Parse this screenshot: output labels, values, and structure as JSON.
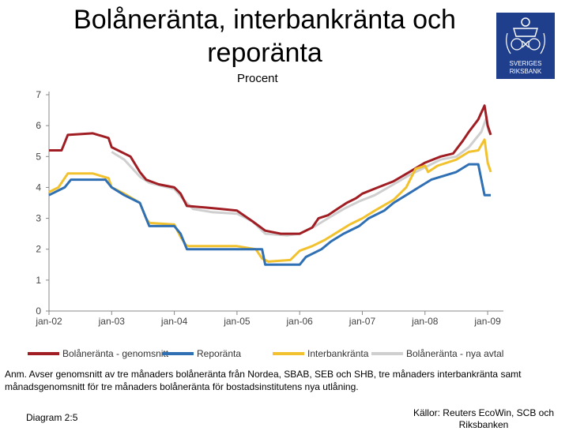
{
  "header": {
    "title": "Bolåneränta, interbankränta och reporänta",
    "unit": "Procent"
  },
  "logo": {
    "line1": "SVERIGES",
    "line2": "RIKSBANK"
  },
  "colors": {
    "bolanerata": "#a01e23",
    "reporanta": "#2f6fb3",
    "interbank": "#f2c12e",
    "nya_avtal": "#cfcfcf",
    "axis": "#888888"
  },
  "chart_data": {
    "type": "line",
    "title": "Bolåneränta, interbankränta och reporänta",
    "ylabel": "Procent",
    "ylim": [
      0,
      7
    ],
    "yticks": [
      "0",
      "1",
      "2",
      "3",
      "4",
      "5",
      "6",
      "7"
    ],
    "xlim": [
      2002.0,
      2009.1
    ],
    "xticks": [
      {
        "label": "jan-02",
        "x": 2002.0
      },
      {
        "label": "jan-03",
        "x": 2003.0
      },
      {
        "label": "jan-04",
        "x": 2004.0
      },
      {
        "label": "jan-05",
        "x": 2005.0
      },
      {
        "label": "jan-06",
        "x": 2006.0
      },
      {
        "label": "jan-07",
        "x": 2007.0
      },
      {
        "label": "jan-08",
        "x": 2008.0
      },
      {
        "label": "jan-09",
        "x": 2009.0
      }
    ],
    "grid": false,
    "legend_position": "bottom",
    "series": [
      {
        "name": "Bolåneränta - genomsnitt",
        "color": "#a01e23",
        "points": [
          [
            2002.0,
            5.2
          ],
          [
            2002.2,
            5.2
          ],
          [
            2002.3,
            5.7
          ],
          [
            2002.7,
            5.75
          ],
          [
            2002.95,
            5.6
          ],
          [
            2003.0,
            5.3
          ],
          [
            2003.3,
            5.0
          ],
          [
            2003.45,
            4.5
          ],
          [
            2003.55,
            4.25
          ],
          [
            2003.75,
            4.1
          ],
          [
            2004.0,
            4.0
          ],
          [
            2004.1,
            3.8
          ],
          [
            2004.2,
            3.4
          ],
          [
            2004.5,
            3.35
          ],
          [
            2004.75,
            3.3
          ],
          [
            2005.0,
            3.25
          ],
          [
            2005.25,
            2.9
          ],
          [
            2005.45,
            2.6
          ],
          [
            2005.7,
            2.5
          ],
          [
            2006.0,
            2.5
          ],
          [
            2006.2,
            2.7
          ],
          [
            2006.3,
            3.0
          ],
          [
            2006.45,
            3.1
          ],
          [
            2006.6,
            3.3
          ],
          [
            2006.75,
            3.5
          ],
          [
            2006.9,
            3.65
          ],
          [
            2007.0,
            3.8
          ],
          [
            2007.25,
            4.0
          ],
          [
            2007.5,
            4.2
          ],
          [
            2007.75,
            4.5
          ],
          [
            2008.0,
            4.8
          ],
          [
            2008.25,
            5.0
          ],
          [
            2008.45,
            5.1
          ],
          [
            2008.6,
            5.5
          ],
          [
            2008.7,
            5.8
          ],
          [
            2008.85,
            6.2
          ],
          [
            2008.95,
            6.65
          ],
          [
            2009.0,
            6.0
          ],
          [
            2009.05,
            5.7
          ]
        ]
      },
      {
        "name": "Reporänta",
        "color": "#2f6fb3",
        "points": [
          [
            2002.0,
            3.75
          ],
          [
            2002.25,
            4.0
          ],
          [
            2002.35,
            4.25
          ],
          [
            2002.9,
            4.25
          ],
          [
            2003.0,
            4.0
          ],
          [
            2003.2,
            3.75
          ],
          [
            2003.45,
            3.5
          ],
          [
            2003.55,
            3.0
          ],
          [
            2003.6,
            2.75
          ],
          [
            2004.0,
            2.75
          ],
          [
            2004.1,
            2.5
          ],
          [
            2004.2,
            2.0
          ],
          [
            2005.0,
            2.0
          ],
          [
            2005.4,
            2.0
          ],
          [
            2005.45,
            1.5
          ],
          [
            2006.0,
            1.5
          ],
          [
            2006.1,
            1.75
          ],
          [
            2006.35,
            2.0
          ],
          [
            2006.5,
            2.25
          ],
          [
            2006.7,
            2.5
          ],
          [
            2006.95,
            2.75
          ],
          [
            2007.1,
            3.0
          ],
          [
            2007.35,
            3.25
          ],
          [
            2007.5,
            3.5
          ],
          [
            2007.7,
            3.75
          ],
          [
            2007.9,
            4.0
          ],
          [
            2008.1,
            4.25
          ],
          [
            2008.5,
            4.5
          ],
          [
            2008.7,
            4.75
          ],
          [
            2008.85,
            4.75
          ],
          [
            2008.9,
            4.25
          ],
          [
            2008.95,
            3.75
          ],
          [
            2009.05,
            3.75
          ]
        ]
      },
      {
        "name": "Interbankränta",
        "color": "#f2c12e",
        "points": [
          [
            2002.0,
            3.85
          ],
          [
            2002.15,
            4.0
          ],
          [
            2002.3,
            4.45
          ],
          [
            2002.7,
            4.45
          ],
          [
            2002.95,
            4.3
          ],
          [
            2003.0,
            4.0
          ],
          [
            2003.2,
            3.8
          ],
          [
            2003.45,
            3.5
          ],
          [
            2003.55,
            3.0
          ],
          [
            2003.6,
            2.85
          ],
          [
            2004.0,
            2.8
          ],
          [
            2004.1,
            2.4
          ],
          [
            2004.2,
            2.1
          ],
          [
            2004.75,
            2.1
          ],
          [
            2005.0,
            2.1
          ],
          [
            2005.3,
            2.0
          ],
          [
            2005.4,
            1.7
          ],
          [
            2005.5,
            1.6
          ],
          [
            2005.85,
            1.65
          ],
          [
            2006.0,
            1.95
          ],
          [
            2006.2,
            2.1
          ],
          [
            2006.4,
            2.3
          ],
          [
            2006.6,
            2.55
          ],
          [
            2006.8,
            2.8
          ],
          [
            2007.0,
            3.0
          ],
          [
            2007.2,
            3.25
          ],
          [
            2007.5,
            3.6
          ],
          [
            2007.7,
            4.0
          ],
          [
            2007.85,
            4.6
          ],
          [
            2008.0,
            4.7
          ],
          [
            2008.05,
            4.5
          ],
          [
            2008.2,
            4.7
          ],
          [
            2008.5,
            4.9
          ],
          [
            2008.7,
            5.15
          ],
          [
            2008.85,
            5.2
          ],
          [
            2008.95,
            5.55
          ],
          [
            2009.0,
            4.8
          ],
          [
            2009.05,
            4.5
          ]
        ]
      },
      {
        "name": "Bolåneränta - nya avtal",
        "color": "#cfcfcf",
        "points": [
          [
            2003.0,
            5.15
          ],
          [
            2003.2,
            4.9
          ],
          [
            2003.45,
            4.35
          ],
          [
            2003.6,
            4.15
          ],
          [
            2004.0,
            3.95
          ],
          [
            2004.15,
            3.6
          ],
          [
            2004.3,
            3.3
          ],
          [
            2004.6,
            3.2
          ],
          [
            2005.0,
            3.15
          ],
          [
            2005.25,
            2.9
          ],
          [
            2005.45,
            2.5
          ],
          [
            2005.8,
            2.45
          ],
          [
            2006.0,
            2.5
          ],
          [
            2006.25,
            2.75
          ],
          [
            2006.45,
            3.0
          ],
          [
            2006.7,
            3.3
          ],
          [
            2006.95,
            3.55
          ],
          [
            2007.2,
            3.75
          ],
          [
            2007.5,
            4.1
          ],
          [
            2007.75,
            4.4
          ],
          [
            2008.0,
            4.65
          ],
          [
            2008.25,
            4.9
          ],
          [
            2008.5,
            5.0
          ],
          [
            2008.7,
            5.3
          ],
          [
            2008.9,
            5.8
          ],
          [
            2008.97,
            6.2
          ],
          [
            2009.02,
            5.8
          ],
          [
            2009.05,
            5.7
          ]
        ]
      }
    ]
  },
  "note": "Anm. Avser genomsnitt av tre månaders bolåneränta från Nordea, SBAB, SEB och SHB, tre månaders interbankränta samt månadsgenomsnitt för tre månaders bolåneränta för bostadsinstitutens nya utlåning.",
  "footer": {
    "diagram_label": "Diagram 2:5",
    "sources": "Källor: Reuters EcoWin, SCB och Riksbanken"
  }
}
